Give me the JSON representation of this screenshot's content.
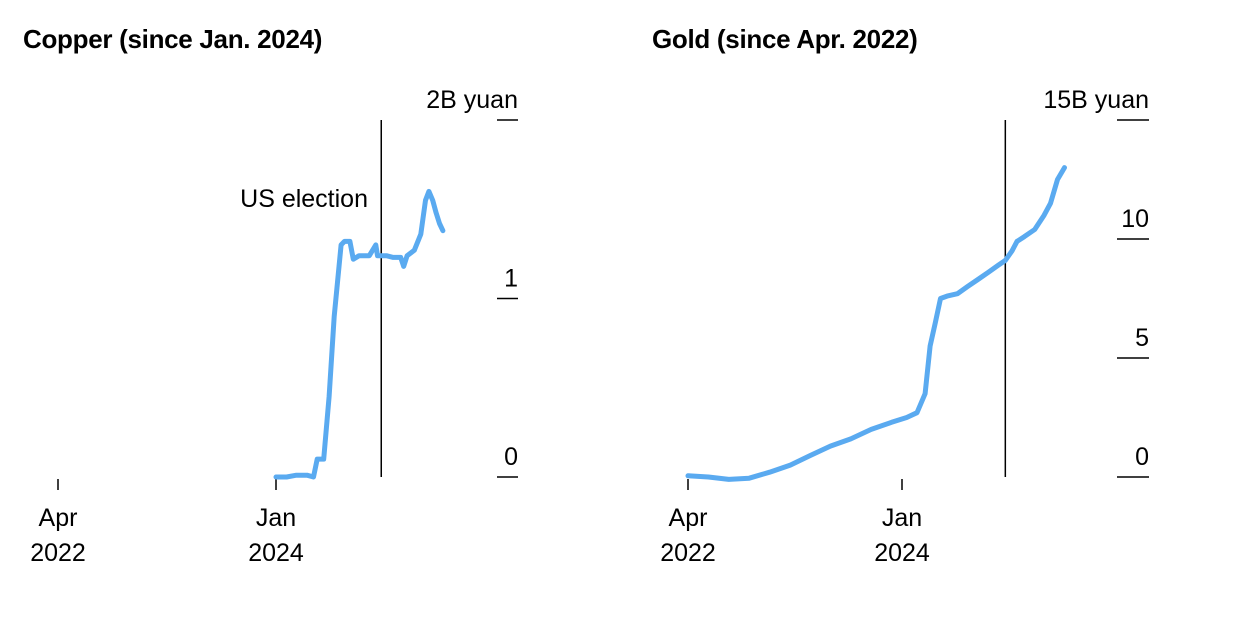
{
  "chart_data": [
    {
      "type": "line",
      "title": "Copper (since Jan. 2024)",
      "y_unit_label": "2B yuan",
      "y_ticks": [
        0,
        1,
        2
      ],
      "y_tick_labels": [
        "0",
        "1",
        "2B yuan"
      ],
      "ylim": [
        0,
        2
      ],
      "x_ticks": [
        {
          "date": "2022-04-01",
          "month": "Apr",
          "year": "2022"
        },
        {
          "date": "2024-01-01",
          "month": "Jan",
          "year": "2024"
        }
      ],
      "annotation": {
        "label": "US election",
        "date": "2024-11-05"
      },
      "line_color": "#5aaaf0",
      "grid": false,
      "series": [
        {
          "x": [
            "2024-01-01",
            "2024-02-01",
            "2024-03-01",
            "2024-04-01",
            "2024-04-20",
            "2024-05-01",
            "2024-05-20",
            "2024-06-05",
            "2024-06-20",
            "2024-07-10",
            "2024-07-20",
            "2024-08-05",
            "2024-08-15",
            "2024-09-01",
            "2024-10-01",
            "2024-10-20",
            "2024-10-25",
            "2024-11-05",
            "2024-11-20",
            "2024-12-10",
            "2025-01-01",
            "2025-01-10",
            "2025-01-20",
            "2025-02-10",
            "2025-03-01",
            "2025-03-15",
            "2025-03-25",
            "2025-04-05",
            "2025-04-15",
            "2025-04-25",
            "2025-05-05"
          ],
          "y": [
            0.0,
            0.0,
            0.01,
            0.01,
            0.0,
            0.1,
            0.1,
            0.45,
            0.9,
            1.3,
            1.32,
            1.32,
            1.22,
            1.24,
            1.24,
            1.3,
            1.24,
            1.24,
            1.24,
            1.23,
            1.23,
            1.18,
            1.24,
            1.27,
            1.36,
            1.55,
            1.6,
            1.55,
            1.48,
            1.42,
            1.38
          ]
        }
      ]
    },
    {
      "type": "line",
      "title": "Gold (since Apr. 2022)",
      "y_unit_label": "15B yuan",
      "y_ticks": [
        0,
        5,
        10,
        15
      ],
      "y_tick_labels": [
        "0",
        "5",
        "10",
        "15B yuan"
      ],
      "ylim": [
        0,
        15
      ],
      "x_ticks": [
        {
          "date": "2022-04-01",
          "month": "Apr",
          "year": "2022"
        },
        {
          "date": "2024-01-01",
          "month": "Jan",
          "year": "2024"
        }
      ],
      "annotation": {
        "label": "",
        "date": "2024-11-05"
      },
      "line_color": "#5aaaf0",
      "grid": false,
      "series": [
        {
          "x": [
            "2022-04-01",
            "2022-06-01",
            "2022-08-01",
            "2022-10-01",
            "2022-12-01",
            "2023-02-01",
            "2023-04-01",
            "2023-06-01",
            "2023-08-01",
            "2023-10-01",
            "2023-12-01",
            "2024-01-15",
            "2024-02-15",
            "2024-03-10",
            "2024-03-25",
            "2024-04-10",
            "2024-04-25",
            "2024-05-15",
            "2024-06-15",
            "2024-07-15",
            "2024-08-15",
            "2024-09-15",
            "2024-10-15",
            "2024-11-05",
            "2024-11-25",
            "2024-12-10",
            "2025-01-01",
            "2025-02-01",
            "2025-03-01",
            "2025-03-20",
            "2025-04-10",
            "2025-05-01"
          ],
          "y": [
            0.05,
            0.0,
            -0.1,
            -0.05,
            0.2,
            0.5,
            0.9,
            1.3,
            1.6,
            2.0,
            2.3,
            2.5,
            2.7,
            3.5,
            5.5,
            6.5,
            7.5,
            7.6,
            7.7,
            8.0,
            8.3,
            8.6,
            8.9,
            9.1,
            9.5,
            9.9,
            10.1,
            10.4,
            11.0,
            11.5,
            12.5,
            13.0
          ]
        }
      ]
    }
  ]
}
